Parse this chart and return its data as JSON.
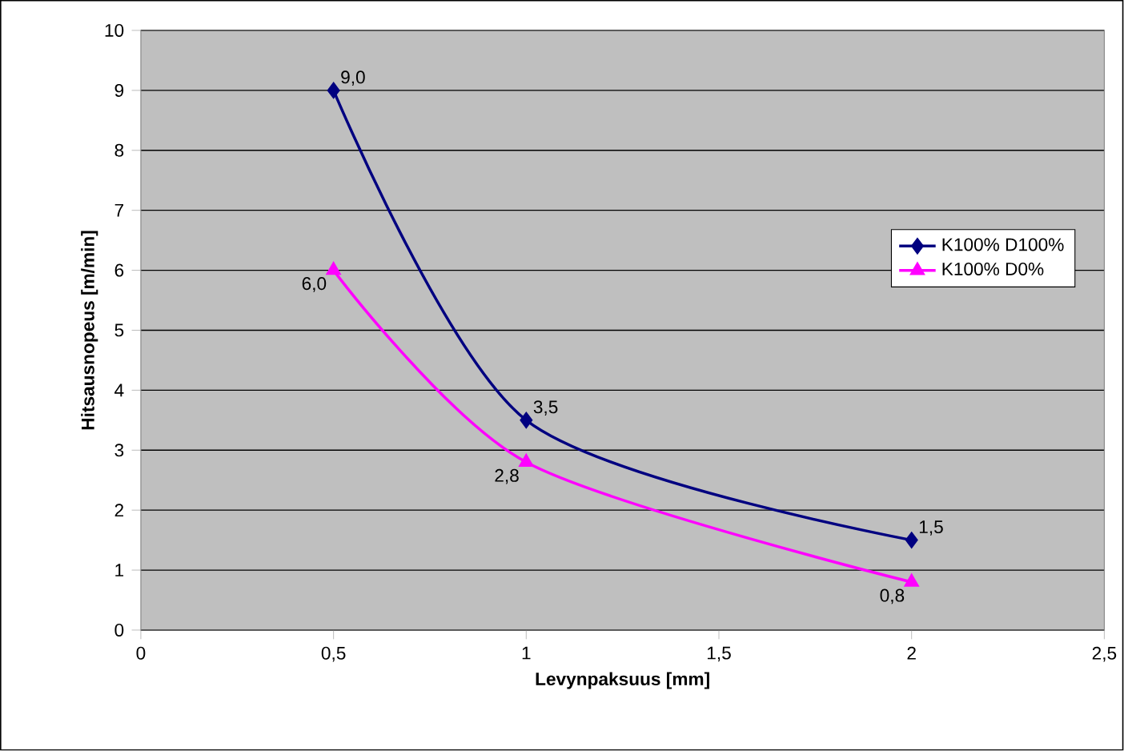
{
  "chart_data": {
    "type": "line",
    "xlabel": "Levynpaksuus [mm]",
    "ylabel": "Hitsausnopeus [m/min]",
    "x": [
      0.5,
      1,
      2
    ],
    "series": [
      {
        "name": "K100% D100%",
        "color": "#000080",
        "marker": "diamond",
        "values": [
          9.0,
          3.5,
          1.5
        ],
        "value_labels": [
          "9,0",
          "3,5",
          "1,5"
        ]
      },
      {
        "name": "K100% D0%",
        "color": "#ff00ff",
        "marker": "triangle",
        "values": [
          6.0,
          2.8,
          0.8
        ],
        "value_labels": [
          "6,0",
          "2,8",
          "0,8"
        ]
      }
    ],
    "xlim": [
      0,
      2.5
    ],
    "xticks": [
      0,
      {
        "value": 0.5,
        "label": "0,5"
      },
      1,
      {
        "value": 1.5,
        "label": "1,5"
      },
      2,
      {
        "value": 2.5,
        "label": "2,5"
      }
    ],
    "ylim": [
      0,
      10
    ],
    "yticks": [
      0,
      1,
      2,
      3,
      4,
      5,
      6,
      7,
      8,
      9,
      10
    ],
    "grid": "y",
    "legend": "right"
  }
}
